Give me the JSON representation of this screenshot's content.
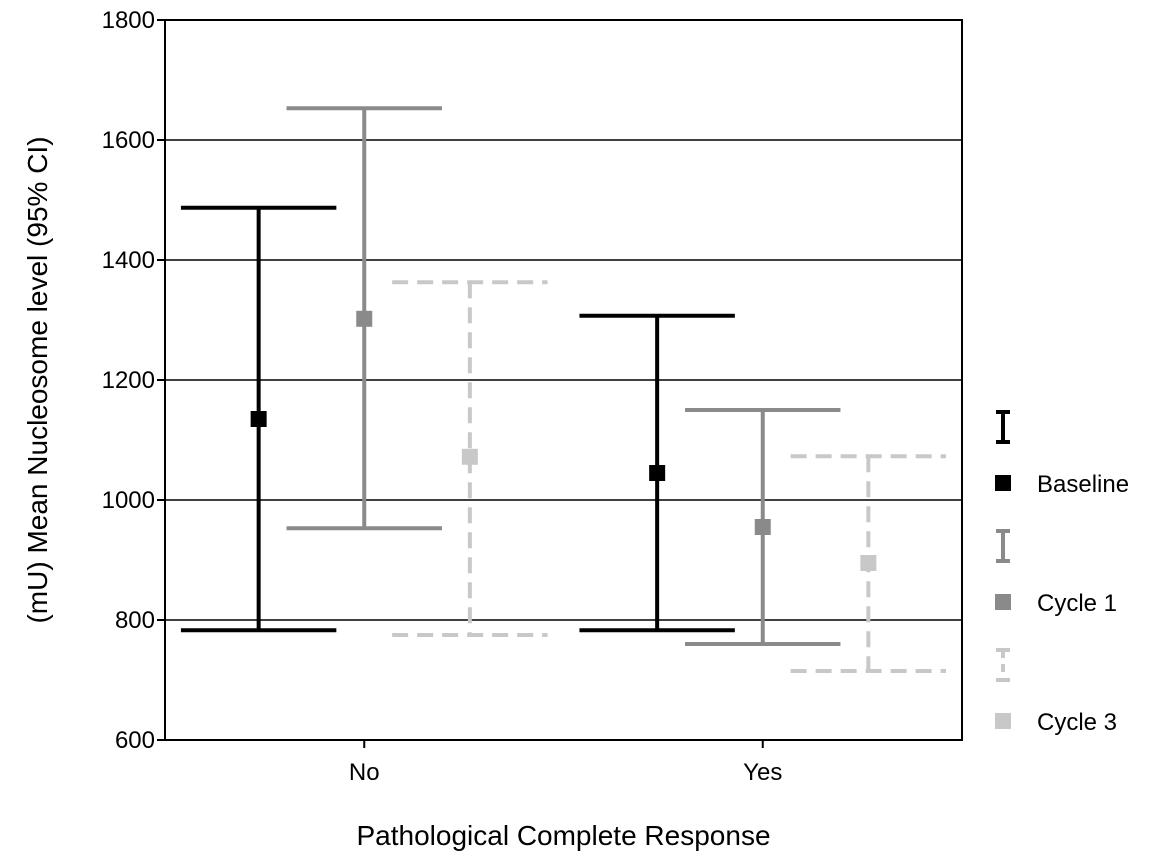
{
  "chart_data": {
    "type": "errorbar",
    "xlabel": "Pathological Complete Response",
    "ylabel": "(mU) Mean Nucleosome level (95% CI)",
    "categories": [
      "No",
      "Yes"
    ],
    "ylim": [
      600,
      1800
    ],
    "yticks": [
      600,
      800,
      1000,
      1200,
      1400,
      1600,
      1800
    ],
    "grid": "horizontal",
    "legend_position": "right",
    "series": [
      {
        "name": "Baseline",
        "color": "#000000",
        "line_style": "solid",
        "mean": [
          1135,
          1045
        ],
        "lower": [
          783,
          783
        ],
        "upper": [
          1487,
          1307
        ]
      },
      {
        "name": "Cycle 1",
        "color": "#8a8a8a",
        "line_style": "solid",
        "mean": [
          1302,
          955
        ],
        "lower": [
          953,
          760
        ],
        "upper": [
          1653,
          1150
        ]
      },
      {
        "name": "Cycle 3",
        "color": "#c8c8c8",
        "line_style": "dashed",
        "mean": [
          1072,
          895
        ],
        "lower": [
          775,
          715
        ],
        "upper": [
          1363,
          1073
        ]
      }
    ]
  }
}
